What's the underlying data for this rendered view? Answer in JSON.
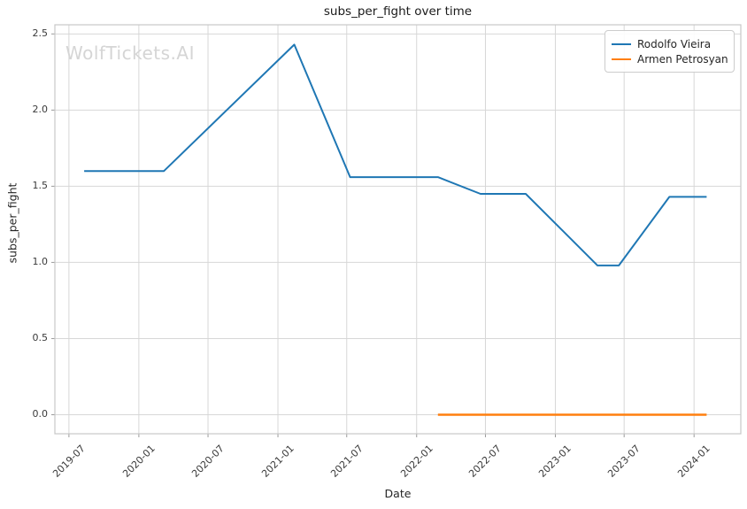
{
  "watermark": "WolfTickets.AI",
  "chart_data": {
    "type": "line",
    "title": "subs_per_fight over time",
    "xlabel": "Date",
    "ylabel": "subs_per_fight",
    "x_ticks": [
      "2019-07",
      "2020-01",
      "2020-07",
      "2021-01",
      "2021-07",
      "2022-01",
      "2022-07",
      "2023-01",
      "2023-07",
      "2024-01"
    ],
    "y_ticks": [
      0.0,
      0.5,
      1.0,
      1.5,
      2.0,
      2.5
    ],
    "xlim": [
      "2019-05-25",
      "2024-05-03"
    ],
    "ylim": [
      -0.125,
      2.56
    ],
    "grid": true,
    "legend_position": "top-right",
    "series": [
      {
        "name": "Rodolfo Vieira",
        "color": "#1f77b4",
        "points": [
          [
            "2019-08-10",
            1.6
          ],
          [
            "2020-03-07",
            1.6
          ],
          [
            "2021-02-13",
            2.43
          ],
          [
            "2021-07-10",
            1.56
          ],
          [
            "2022-02-26",
            1.56
          ],
          [
            "2022-06-18",
            1.45
          ],
          [
            "2022-10-15",
            1.45
          ],
          [
            "2023-04-22",
            0.98
          ],
          [
            "2023-06-17",
            0.98
          ],
          [
            "2023-10-28",
            1.43
          ],
          [
            "2024-02-03",
            1.43
          ]
        ]
      },
      {
        "name": "Armen Petrosyan",
        "color": "#ff7f0e",
        "points": [
          [
            "2022-02-26",
            0.0
          ],
          [
            "2024-02-03",
            0.0
          ]
        ]
      }
    ],
    "style": {
      "grid_color": "#d7d7d7",
      "spine_color": "#c7c7c7",
      "tick_color": "#9a9a9a",
      "background": "#ffffff"
    }
  }
}
